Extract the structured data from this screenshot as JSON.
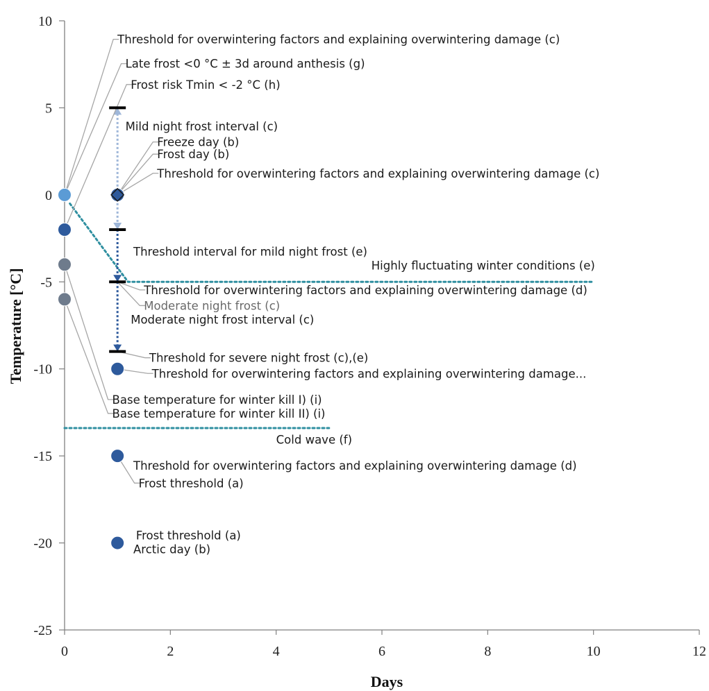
{
  "chart_data": {
    "type": "scatter",
    "xlabel": "Days",
    "ylabel": "Temperature  [°C]",
    "xlim": [
      0,
      12
    ],
    "ylim": [
      -25,
      10
    ],
    "xticks": [
      "0",
      "2",
      "4",
      "6",
      "8",
      "10",
      "12"
    ],
    "yticks": [
      "10",
      "5",
      "0",
      "-5",
      "-10",
      "-15",
      "-20",
      "-25"
    ],
    "grid": false,
    "colors": {
      "axis": "#7f7f7f",
      "point_dark": "#2e5a9c",
      "point_light": "#5b9bd5",
      "point_grey": "#6e7b8c",
      "arrow_light": "#9fb7d9",
      "arrow_dark": "#2e5a9c",
      "dotted_teal": "#2f8fa0",
      "leader": "#a6a6a6",
      "bar": "#000000"
    },
    "points": [
      {
        "x": 0,
        "y": 0,
        "color": "light"
      },
      {
        "x": 0,
        "y": -2,
        "color": "dark"
      },
      {
        "x": 0,
        "y": -4,
        "color": "grey"
      },
      {
        "x": 0,
        "y": -6,
        "color": "grey"
      },
      {
        "x": 1,
        "y": 0,
        "color": "dark"
      },
      {
        "x": 1,
        "y": -10,
        "color": "dark"
      },
      {
        "x": 1,
        "y": -15,
        "color": "dark"
      },
      {
        "x": 1,
        "y": -20,
        "color": "dark"
      }
    ],
    "interval_bars": [
      {
        "x": 1,
        "y": 5
      },
      {
        "x": 1,
        "y": -2
      },
      {
        "x": 1,
        "y": -5
      },
      {
        "x": 1,
        "y": -9
      }
    ],
    "intervals": [
      {
        "x": 1,
        "y_from": 0,
        "y_to": 5,
        "style": "light"
      },
      {
        "x": 1,
        "y_from": 0,
        "y_to": -2,
        "style": "light"
      },
      {
        "x": 1,
        "y_from": -2,
        "y_to": -5,
        "style": "dark"
      },
      {
        "x": 1,
        "y_from": -5,
        "y_to": -9,
        "style": "dark"
      }
    ],
    "lines": [
      {
        "name": "Highly fluctuating winter conditions",
        "points": [
          [
            0.1,
            -0.5
          ],
          [
            1.2,
            -5
          ],
          [
            10,
            -5
          ]
        ]
      },
      {
        "name": "Cold wave",
        "points": [
          [
            0,
            -13.4
          ],
          [
            5,
            -13.4
          ]
        ]
      }
    ],
    "annotations": [
      {
        "text": "Threshold for overwintering factors and explaining overwintering damage (c)",
        "anchor": [
          0,
          0
        ],
        "x": 1,
        "y": 8.7
      },
      {
        "text": "Late frost <0 °C ± 3d around anthesis (g)",
        "anchor": [
          0,
          0
        ],
        "x": 1.15,
        "y": 7.3
      },
      {
        "text": "Frost risk Tmin < -2 °C (h)",
        "anchor": [
          0,
          -2
        ],
        "x": 1.25,
        "y": 6.1
      },
      {
        "text": "Mild night frost interval (c)",
        "anchor": null,
        "x": 1.15,
        "y": 3.7
      },
      {
        "text": "Freeze day (b)",
        "anchor": [
          1,
          0
        ],
        "x": 1.75,
        "y": 2.8
      },
      {
        "text": "Frost day (b)",
        "anchor": [
          1,
          0
        ],
        "x": 1.75,
        "y": 2.1
      },
      {
        "text": "Threshold for overwintering factors and explaining overwintering damage (c)",
        "anchor": [
          1,
          0
        ],
        "x": 1.75,
        "y": 1
      },
      {
        "text": "Threshold interval for mild night frost (e)",
        "anchor": null,
        "x": 1.3,
        "y": -3.5
      },
      {
        "text": "Highly fluctuating winter conditions (e)",
        "anchor": null,
        "x": 5.8,
        "y": -4.3
      },
      {
        "text": "Threshold for overwintering factors and explaining overwintering damage (d)",
        "anchor": [
          1,
          -5
        ],
        "x": 1.5,
        "y": -5.7
      },
      {
        "text": "Moderate night frost  (c)",
        "anchor": [
          1,
          -5
        ],
        "x": 1.5,
        "y": -6.6,
        "grey": true
      },
      {
        "text": "Moderate night frost interval (c)",
        "anchor": null,
        "x": 1.25,
        "y": -7.4
      },
      {
        "text": "Threshold for severe night frost (c),(e)",
        "anchor": [
          1,
          -9
        ],
        "x": 1.6,
        "y": -9.6
      },
      {
        "text": "Threshold for overwintering factors and explaining overwintering damage...",
        "anchor": [
          1,
          -10
        ],
        "x": 1.65,
        "y": -10.5
      },
      {
        "text": "Base temperature for winter kill I) (i)",
        "anchor": [
          0,
          -4
        ],
        "x": 0.9,
        "y": -12
      },
      {
        "text": "Base temperature for winter kill II) (i)",
        "anchor": [
          0,
          -6
        ],
        "x": 0.9,
        "y": -12.8
      },
      {
        "text": "Cold wave (f)",
        "anchor": null,
        "x": 4,
        "y": -14.3
      },
      {
        "text": "Threshold for overwintering factors and explaining overwintering damage (d)",
        "anchor": null,
        "x": 1.3,
        "y": -15.8
      },
      {
        "text": "Frost threshold (a)",
        "anchor": [
          1,
          -15
        ],
        "x": 1.4,
        "y": -16.8
      },
      {
        "text": "Frost threshold (a)",
        "anchor": null,
        "x": 1.35,
        "y": -19.8
      },
      {
        "text": "Arctic day (b)",
        "anchor": null,
        "x": 1.3,
        "y": -20.6
      }
    ]
  }
}
